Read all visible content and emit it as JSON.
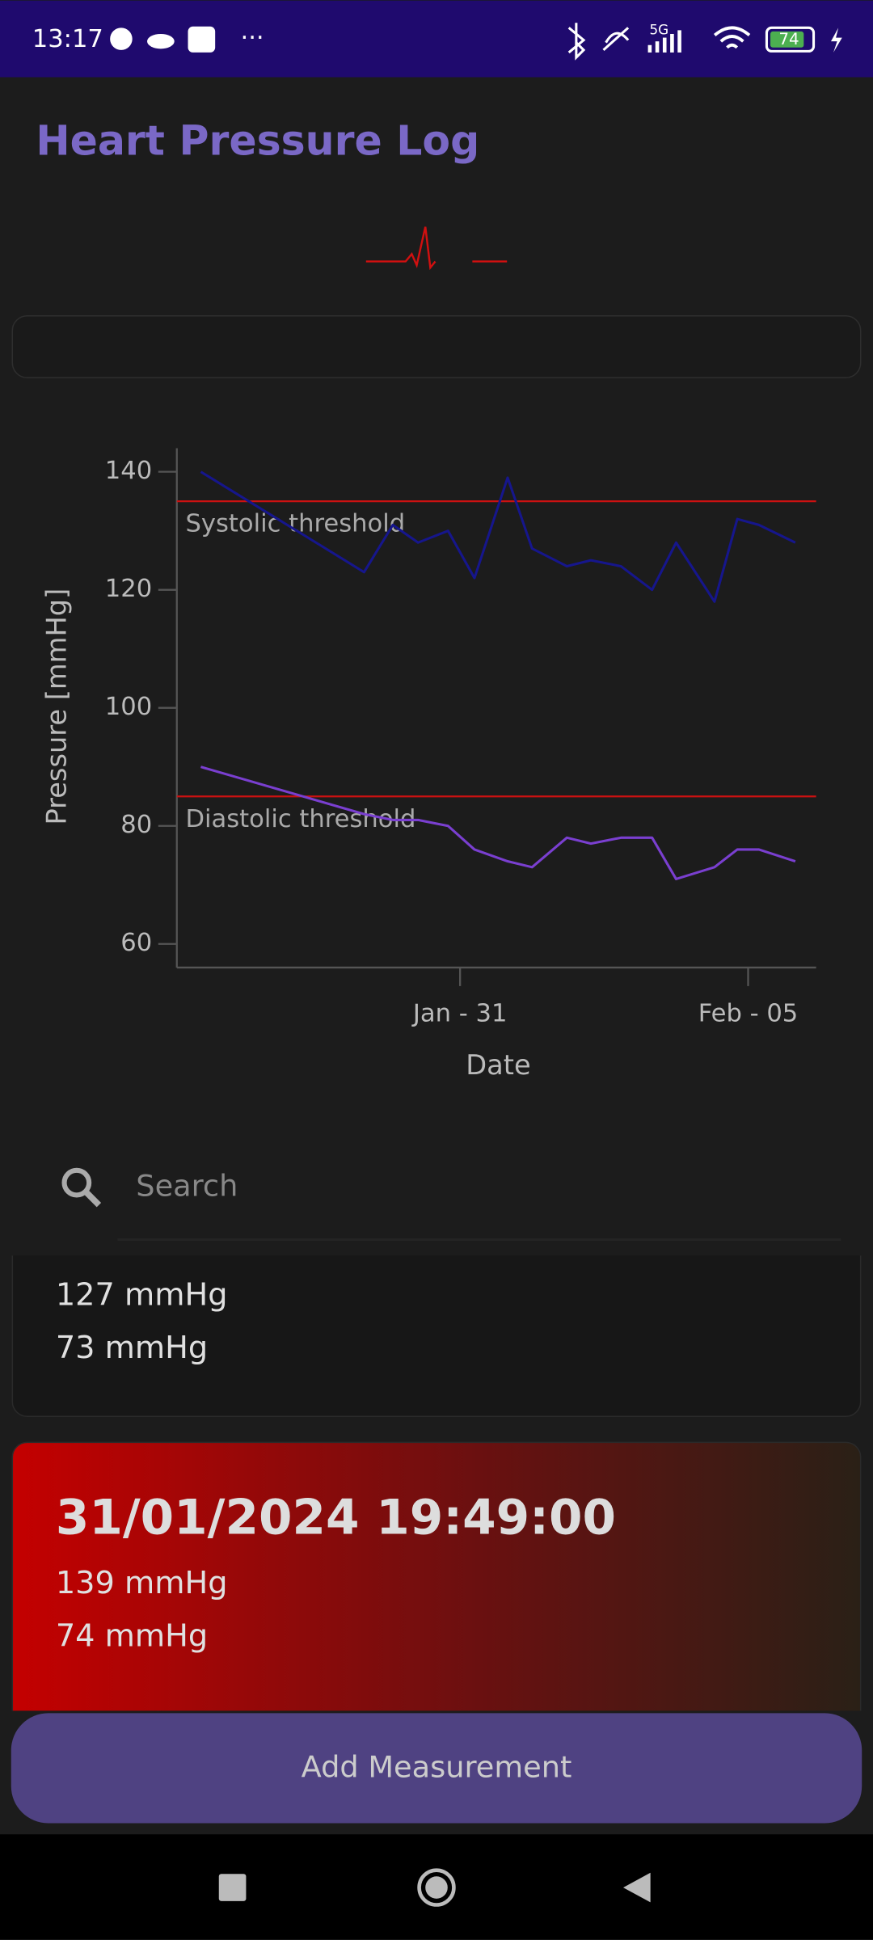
{
  "status_bar": {
    "time": "13:17",
    "network": "5G",
    "battery": "74"
  },
  "header": {
    "title": "Heart Pressure Log"
  },
  "chart_data": {
    "type": "line",
    "ylabel": "Pressure [mmHg]",
    "xlabel": "Date",
    "x": [
      "2024-01-26T12:00",
      "2024-01-29T08:00",
      "2024-01-29T20:00",
      "2024-01-30T06:30",
      "2024-01-30T19:00",
      "2024-01-31T06:00",
      "2024-01-31T19:49",
      "2024-02-01T06:00",
      "2024-02-01T20:30",
      "2024-02-02T06:30",
      "2024-02-02T19:00",
      "2024-02-03T08:00",
      "2024-02-03T18:00",
      "2024-02-04T10:00",
      "2024-02-04T19:30",
      "2024-02-05T04:30",
      "2024-02-05T19:40"
    ],
    "series": [
      {
        "color": "#16168c",
        "values": [
          140,
          123,
          131,
          128,
          130,
          122,
          139,
          127,
          124,
          125,
          124,
          120,
          128,
          118,
          132,
          131,
          128
        ]
      },
      {
        "color": "#7a3fd0",
        "values": [
          90,
          82,
          81,
          81,
          80,
          76,
          74,
          73,
          78,
          77,
          78,
          78,
          71,
          73,
          76,
          76,
          74
        ]
      }
    ],
    "thresholds": [
      {
        "label": "Systolic threshold",
        "value": 135
      },
      {
        "label": "Diastolic threshold",
        "value": 85
      }
    ],
    "threshold_color": "#cc1111",
    "xlim": [
      "2024-01-26T02:00",
      "2024-02-06T04:20"
    ],
    "xticks": [
      {
        "value": "2024-01-31T00:00",
        "label": "Jan - 31"
      },
      {
        "value": "2024-02-05T00:00",
        "label": "Feb - 05"
      }
    ],
    "ylim": [
      56,
      144
    ],
    "yticks": [
      60,
      80,
      100,
      120,
      140
    ],
    "grid": false
  },
  "search": {
    "placeholder": "Search"
  },
  "measurements": [
    {
      "systolic": "127 mmHg",
      "diastolic": "73 mmHg"
    },
    {
      "date": "31/01/2024 19:49:00",
      "systolic": "139 mmHg",
      "diastolic": "74 mmHg"
    }
  ],
  "button": {
    "label": "Add Measurement"
  }
}
